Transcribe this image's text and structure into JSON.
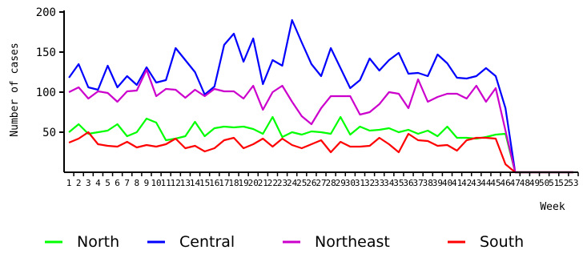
{
  "chart_data": {
    "type": "line",
    "xlabel": "Week",
    "ylabel": "Number of cases",
    "ylim": [
      0,
      200
    ],
    "yticks": [
      50,
      100,
      150,
      200
    ],
    "x": [
      1,
      2,
      3,
      4,
      5,
      6,
      7,
      8,
      9,
      10,
      11,
      12,
      13,
      14,
      15,
      16,
      17,
      18,
      19,
      20,
      21,
      22,
      23,
      24,
      25,
      26,
      27,
      28,
      29,
      30,
      31,
      32,
      33,
      34,
      35,
      36,
      37,
      38,
      39,
      40,
      41,
      42,
      43,
      44,
      45,
      46,
      47,
      48,
      49,
      50,
      51,
      52,
      53
    ],
    "legend_position": "bottom",
    "grid": false,
    "series": [
      {
        "name": "North",
        "color": "#00ff00",
        "values": [
          50,
          60,
          48,
          50,
          52,
          60,
          45,
          50,
          67,
          62,
          40,
          42,
          45,
          63,
          45,
          55,
          57,
          56,
          57,
          54,
          48,
          69,
          44,
          50,
          47,
          51,
          50,
          48,
          69,
          47,
          57,
          52,
          53,
          55,
          50,
          53,
          48,
          52,
          45,
          57,
          43,
          43,
          42,
          44,
          47,
          48,
          0,
          0,
          0,
          0,
          0,
          0,
          0
        ]
      },
      {
        "name": "Central",
        "color": "#0000ff",
        "values": [
          118,
          135,
          106,
          103,
          133,
          106,
          120,
          109,
          131,
          112,
          115,
          155,
          140,
          125,
          97,
          107,
          159,
          173,
          138,
          167,
          110,
          140,
          133,
          190,
          162,
          135,
          120,
          155,
          130,
          105,
          115,
          142,
          127,
          140,
          149,
          123,
          124,
          120,
          147,
          136,
          118,
          117,
          120,
          130,
          120,
          80,
          0,
          0,
          0,
          0,
          0,
          0,
          0
        ]
      },
      {
        "name": "Northeast",
        "color": "#cc00cc",
        "values": [
          100,
          106,
          92,
          101,
          99,
          88,
          101,
          102,
          128,
          95,
          104,
          103,
          93,
          103,
          95,
          104,
          101,
          101,
          92,
          108,
          78,
          100,
          108,
          88,
          70,
          60,
          80,
          95,
          95,
          95,
          72,
          75,
          85,
          100,
          98,
          80,
          116,
          88,
          94,
          98,
          98,
          92,
          108,
          88,
          105,
          52,
          0,
          0,
          0,
          0,
          0,
          0,
          0
        ]
      },
      {
        "name": "South",
        "color": "#ff0000",
        "values": [
          37,
          42,
          50,
          35,
          33,
          32,
          38,
          31,
          34,
          32,
          35,
          42,
          30,
          33,
          26,
          30,
          40,
          43,
          30,
          35,
          42,
          32,
          42,
          34,
          30,
          35,
          40,
          25,
          38,
          32,
          32,
          33,
          43,
          35,
          25,
          48,
          40,
          39,
          33,
          34,
          27,
          40,
          43,
          43,
          42,
          10,
          0,
          0,
          0,
          0,
          0,
          0,
          0
        ]
      }
    ]
  }
}
